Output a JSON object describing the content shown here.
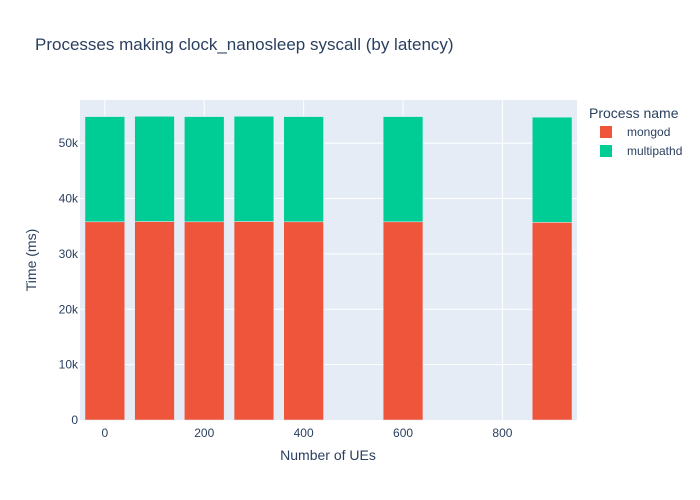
{
  "chart_data": {
    "type": "bar",
    "barmode": "stack",
    "title": "Processes making clock_nanosleep syscall (by latency)",
    "xlabel": "Number of UEs",
    "ylabel": "Time (ms)",
    "x": [
      0,
      100,
      200,
      300,
      400,
      600,
      900
    ],
    "xlim": [
      -50,
      950
    ],
    "ylim": [
      0,
      57800
    ],
    "xticks": [
      0,
      200,
      400,
      600,
      800
    ],
    "xtick_labels": [
      "0",
      "200",
      "400",
      "600",
      "800"
    ],
    "yticks": [
      0,
      10000,
      20000,
      30000,
      40000,
      50000
    ],
    "ytick_labels": [
      "0",
      "10k",
      "20k",
      "30k",
      "40k",
      "50k"
    ],
    "legend_title": "Process name",
    "legend_position": "top-right",
    "grid": true,
    "series": [
      {
        "name": "mongod",
        "color": "#EF553B",
        "values": [
          35800,
          35850,
          35800,
          35850,
          35800,
          35800,
          35700
        ]
      },
      {
        "name": "multipathd",
        "color": "#00CC96",
        "values": [
          19000,
          19000,
          19000,
          19000,
          19000,
          19000,
          19000
        ]
      }
    ],
    "colors": {
      "plot_bg": "#E5ECF6",
      "grid": "#ffffff",
      "text": "#2a3f5f"
    }
  }
}
